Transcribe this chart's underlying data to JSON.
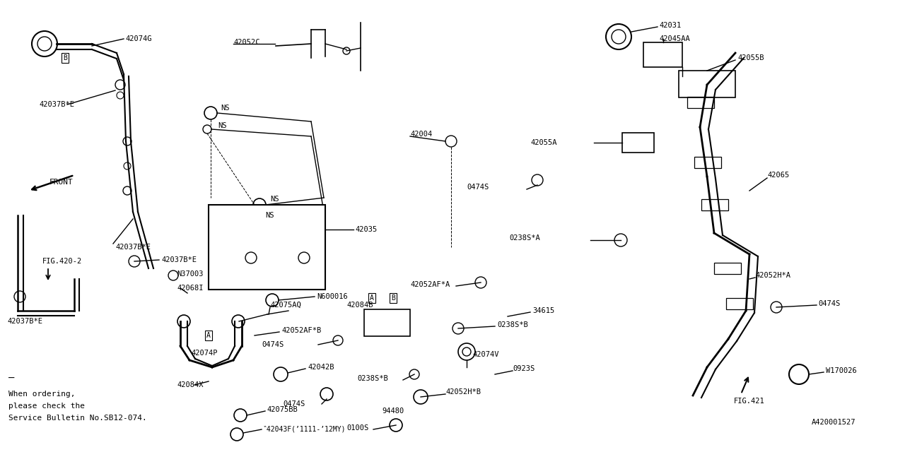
{
  "bg_color": "#FFFFFF",
  "line_color": "#000000",
  "fig_width": 12.8,
  "fig_height": 6.4,
  "note_lines": [
    "‾",
    "When ordering,",
    "please check the",
    "Service Bulletin No.SB12-074."
  ]
}
